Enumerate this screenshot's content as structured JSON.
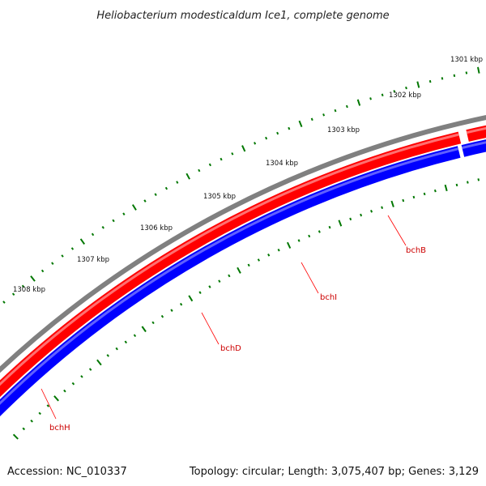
{
  "title": "Heliobacterium modesticaldum Ice1, complete genome",
  "footer": {
    "accession": "Accession: NC_010337",
    "summary": "Topology: circular; Length: 3,075,407 bp; Genes: 3,129"
  },
  "colors": {
    "backbone": "#808080",
    "forward_cds": "#ff0000",
    "reverse_cds_1": "#0000ff",
    "reverse_cds_2": "#00ffff",
    "ticks": "#007700",
    "gene_label": "#cc0000",
    "leader": "#ff0000"
  },
  "kbp_labels": [
    "1301 kbp",
    "1302 kbp",
    "1303 kbp",
    "1304 kbp",
    "1305 kbp",
    "1306 kbp",
    "1307 kbp",
    "1308 kbp"
  ],
  "gene_labels": [
    "bchB",
    "bchI",
    "bchD",
    "bchH"
  ]
}
